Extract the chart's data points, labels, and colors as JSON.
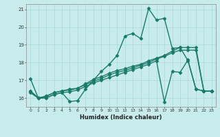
{
  "xlabel": "Humidex (Indice chaleur)",
  "bg_color": "#c8ecec",
  "grid_color": "#a8d8d8",
  "line_color": "#1a7a6a",
  "marker": "D",
  "marker_size": 2.5,
  "line_width": 1.0,
  "xlim": [
    -0.5,
    23.5
  ],
  "ylim": [
    15.5,
    21.3
  ],
  "yticks": [
    16,
    17,
    18,
    19,
    20,
    21
  ],
  "xticks": [
    0,
    1,
    2,
    3,
    4,
    5,
    6,
    7,
    8,
    9,
    10,
    11,
    12,
    13,
    14,
    15,
    16,
    17,
    18,
    19,
    20,
    21,
    22,
    23
  ],
  "xticklabels": [
    "0",
    "1",
    "2",
    "3",
    "4",
    "5",
    "6",
    "7",
    "8",
    "9",
    "10",
    "11",
    "12",
    "13",
    "14",
    "15",
    "16",
    "17",
    "18",
    "19",
    "20",
    "21",
    "22",
    "23"
  ],
  "series": [
    [
      17.1,
      16.0,
      16.0,
      16.2,
      16.3,
      15.8,
      15.85,
      16.5,
      17.0,
      17.5,
      17.9,
      18.4,
      19.5,
      19.65,
      19.35,
      21.05,
      20.4,
      20.5,
      18.8,
      18.85,
      18.1,
      16.5,
      16.4,
      16.4
    ],
    [
      16.3,
      16.0,
      16.1,
      16.3,
      16.4,
      16.5,
      16.55,
      16.8,
      17.05,
      17.2,
      17.4,
      17.55,
      17.65,
      17.8,
      17.9,
      18.1,
      18.25,
      18.4,
      18.65,
      18.85,
      18.85,
      18.85,
      16.4,
      16.4
    ],
    [
      16.4,
      16.0,
      16.1,
      16.3,
      16.4,
      16.45,
      16.55,
      16.75,
      16.95,
      17.1,
      17.3,
      17.45,
      17.55,
      17.7,
      17.85,
      18.0,
      18.2,
      18.35,
      18.55,
      18.7,
      18.7,
      18.7,
      16.4,
      16.4
    ],
    [
      16.4,
      16.0,
      16.0,
      16.2,
      16.3,
      16.35,
      16.45,
      16.65,
      16.85,
      17.0,
      17.15,
      17.3,
      17.45,
      17.6,
      17.75,
      17.9,
      18.1,
      15.78,
      17.5,
      17.45,
      18.15,
      16.5,
      16.4,
      16.4
    ]
  ]
}
